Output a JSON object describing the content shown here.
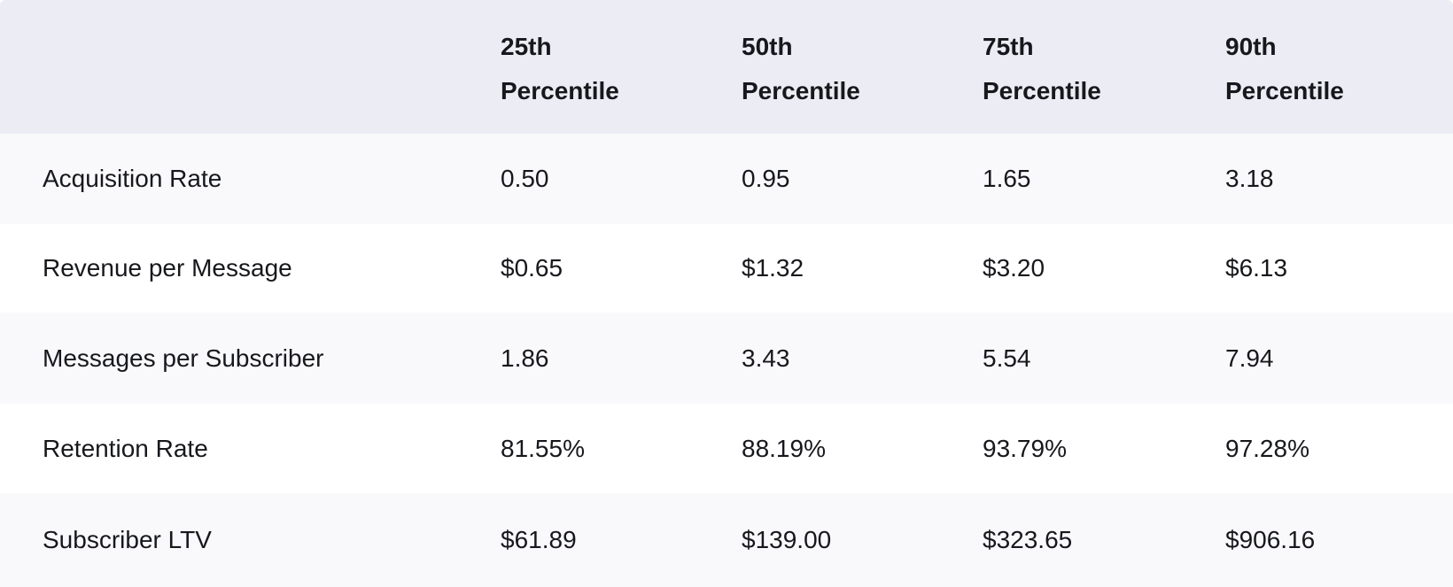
{
  "colors": {
    "header_bg": "#ececf5",
    "row_bg": "#ffffff",
    "row_alt_bg": "#f9f9fb",
    "text": "#17181c"
  },
  "chart_data": {
    "type": "table",
    "columns": [
      "",
      "25th Percentile",
      "50th Percentile",
      "75th Percentile",
      "90th Percentile"
    ],
    "rows": [
      {
        "label": "Acquisition Rate",
        "values": [
          "0.50",
          "0.95",
          "1.65",
          "3.18"
        ]
      },
      {
        "label": "Revenue per Message",
        "values": [
          "$0.65",
          "$1.32",
          "$3.20",
          "$6.13"
        ]
      },
      {
        "label": "Messages per Subscriber",
        "values": [
          "1.86",
          "3.43",
          "5.54",
          "7.94"
        ]
      },
      {
        "label": "Retention Rate",
        "values": [
          "81.55%",
          "88.19%",
          "93.79%",
          "97.28%"
        ]
      },
      {
        "label": "Subscriber LTV",
        "values": [
          "$61.89",
          "$139.00",
          "$323.65",
          "$906.16"
        ]
      }
    ]
  }
}
